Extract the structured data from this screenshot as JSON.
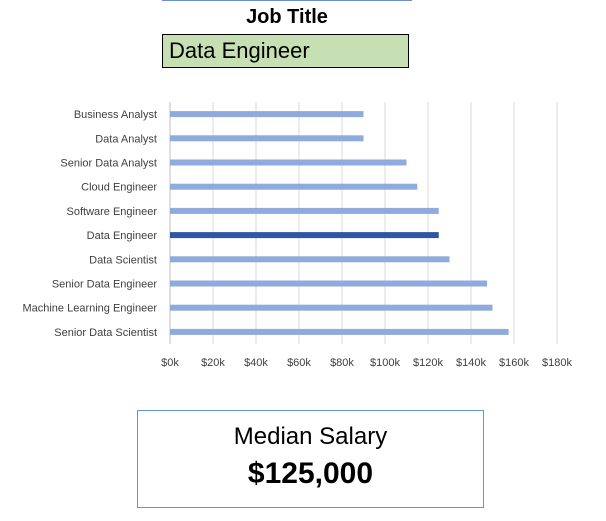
{
  "header": {
    "label": "Job Title",
    "selected_value": "Data Engineer"
  },
  "chart_data": {
    "type": "bar",
    "orientation": "horizontal",
    "categories": [
      "Business Analyst",
      "Data Analyst",
      "Senior Data Analyst",
      "Cloud Engineer",
      "Software Engineer",
      "Data Engineer",
      "Data Scientist",
      "Senior Data Engineer",
      "Machine Learning Engineer",
      "Senior Data Scientist"
    ],
    "values": [
      90000,
      90000,
      110000,
      115000,
      125000,
      125000,
      130000,
      147500,
      150000,
      157500
    ],
    "highlight": "Data Engineer",
    "xlim": [
      0,
      180000
    ],
    "xticks": [
      "$0k",
      "$20k",
      "$40k",
      "$60k",
      "$80k",
      "$100k",
      "$120k",
      "$140k",
      "$160k",
      "$180k"
    ],
    "grid": "vertical",
    "colors": {
      "bar": "#8faadc",
      "highlight": "#2f55a4",
      "grid": "#d9d9d9",
      "axis": "#bfbfbf"
    }
  },
  "summary": {
    "label": "Median Salary",
    "value": "$125,000"
  }
}
